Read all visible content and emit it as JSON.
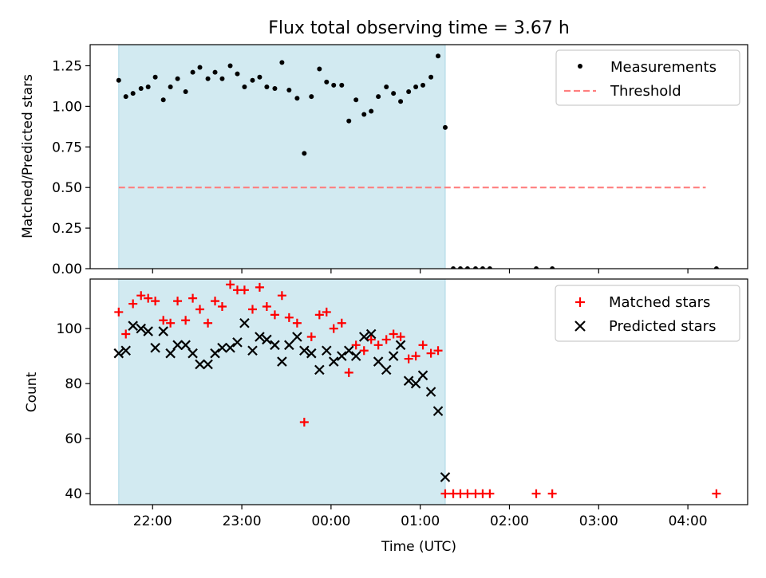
{
  "figure": {
    "title": "Flux total observing time = 3.67 h",
    "x_tick_labels": [
      "22:00",
      "23:00",
      "00:00",
      "01:00",
      "02:00",
      "03:00",
      "04:00"
    ],
    "xlabel": "Time (UTC)"
  },
  "colors": {
    "shade": "#add8e6",
    "measurements": "#000000",
    "threshold": "#ff7f7f",
    "matched": "#ff0000",
    "predicted": "#000000"
  },
  "chart_data": [
    {
      "type": "scatter",
      "panel": "top",
      "title": "Flux total observing time = 3.67 h",
      "xlabel": "",
      "ylabel": "Matched/Predicted stars",
      "x_unit": "hours since 21:00 UTC",
      "xlim": [
        0.3,
        7.67
      ],
      "ylim": [
        0.0,
        1.38
      ],
      "y_ticks": [
        0.0,
        0.25,
        0.5,
        0.75,
        1.0,
        1.25
      ],
      "y_tick_labels": [
        "0.00",
        "0.25",
        "0.50",
        "0.75",
        "1.00",
        "1.25"
      ],
      "grid": false,
      "legend": "top-right",
      "shaded_region": {
        "x": [
          0.62,
          4.28
        ]
      },
      "threshold": {
        "name": "Threshold",
        "y": 0.5,
        "x": [
          0.62,
          7.2
        ]
      },
      "series": [
        {
          "name": "Measurements",
          "x": [
            0.62,
            0.7,
            0.78,
            0.87,
            0.95,
            1.03,
            1.12,
            1.2,
            1.28,
            1.37,
            1.45,
            1.53,
            1.62,
            1.7,
            1.78,
            1.87,
            1.95,
            2.03,
            2.12,
            2.2,
            2.28,
            2.37,
            2.45,
            2.53,
            2.62,
            2.7,
            2.78,
            2.87,
            2.95,
            3.03,
            3.12,
            3.2,
            3.28,
            3.37,
            3.45,
            3.53,
            3.62,
            3.7,
            3.78,
            3.87,
            3.95,
            4.03,
            4.12,
            4.2,
            4.28,
            4.37,
            4.45,
            4.53,
            4.62,
            4.7,
            4.78,
            5.3,
            5.48,
            7.32
          ],
          "y": [
            1.16,
            1.06,
            1.08,
            1.11,
            1.12,
            1.18,
            1.04,
            1.12,
            1.17,
            1.09,
            1.21,
            1.24,
            1.17,
            1.21,
            1.17,
            1.25,
            1.2,
            1.12,
            1.16,
            1.18,
            1.12,
            1.11,
            1.27,
            1.1,
            1.05,
            0.71,
            1.06,
            1.23,
            1.15,
            1.13,
            1.13,
            0.91,
            1.04,
            0.95,
            0.97,
            1.06,
            1.12,
            1.08,
            1.03,
            1.09,
            1.12,
            1.13,
            1.18,
            1.31,
            0.87,
            0.0,
            0.0,
            0.0,
            0.0,
            0.0,
            0.0,
            0.0,
            0.0,
            0.0
          ]
        }
      ]
    },
    {
      "type": "scatter",
      "panel": "bottom",
      "xlabel": "Time (UTC)",
      "ylabel": "Count",
      "x_unit": "hours since 21:00 UTC",
      "xlim": [
        0.3,
        7.67
      ],
      "ylim": [
        36,
        118
      ],
      "y_ticks": [
        40,
        60,
        80,
        100
      ],
      "y_tick_labels": [
        "40",
        "60",
        "80",
        "100"
      ],
      "x_ticks": [
        1,
        2,
        3,
        4,
        5,
        6,
        7
      ],
      "x_tick_labels": [
        "22:00",
        "23:00",
        "00:00",
        "01:00",
        "02:00",
        "03:00",
        "04:00"
      ],
      "grid": false,
      "legend": "top-right",
      "shaded_region": {
        "x": [
          0.62,
          4.28
        ]
      },
      "series": [
        {
          "name": "Matched stars",
          "marker": "plus",
          "x": [
            0.62,
            0.7,
            0.78,
            0.87,
            0.95,
            1.03,
            1.12,
            1.2,
            1.28,
            1.37,
            1.45,
            1.53,
            1.62,
            1.7,
            1.78,
            1.87,
            1.95,
            2.03,
            2.12,
            2.2,
            2.28,
            2.37,
            2.45,
            2.53,
            2.62,
            2.7,
            2.78,
            2.87,
            2.95,
            3.03,
            3.12,
            3.2,
            3.28,
            3.37,
            3.45,
            3.53,
            3.62,
            3.7,
            3.78,
            3.87,
            3.95,
            4.03,
            4.12,
            4.2,
            4.28,
            4.37,
            4.45,
            4.53,
            4.62,
            4.7,
            4.78,
            5.3,
            5.48,
            7.32
          ],
          "y": [
            106,
            98,
            109,
            112,
            111,
            110,
            103,
            102,
            110,
            103,
            111,
            107,
            102,
            110,
            108,
            116,
            114,
            114,
            107,
            115,
            108,
            105,
            112,
            104,
            102,
            66,
            97,
            105,
            106,
            100,
            102,
            84,
            94,
            92,
            96,
            94,
            96,
            98,
            97,
            89,
            90,
            94,
            91,
            92,
            40,
            40,
            40,
            40,
            40,
            40,
            40,
            40,
            40,
            40
          ]
        },
        {
          "name": "Predicted stars",
          "marker": "x",
          "x": [
            0.62,
            0.7,
            0.78,
            0.87,
            0.95,
            1.03,
            1.12,
            1.2,
            1.28,
            1.37,
            1.45,
            1.53,
            1.62,
            1.7,
            1.78,
            1.87,
            1.95,
            2.03,
            2.12,
            2.2,
            2.28,
            2.37,
            2.45,
            2.53,
            2.62,
            2.7,
            2.78,
            2.87,
            2.95,
            3.03,
            3.12,
            3.2,
            3.28,
            3.37,
            3.45,
            3.53,
            3.62,
            3.7,
            3.78,
            3.87,
            3.95,
            4.03,
            4.12,
            4.2,
            4.28
          ],
          "y": [
            91,
            92,
            101,
            100,
            99,
            93,
            99,
            91,
            94,
            94,
            91,
            87,
            87,
            91,
            93,
            93,
            95,
            102,
            92,
            97,
            96,
            94,
            88,
            94,
            97,
            92,
            91,
            85,
            92,
            88,
            90,
            92,
            90,
            97,
            98,
            88,
            85,
            90,
            94,
            81,
            80,
            83,
            77,
            70,
            46
          ]
        }
      ]
    }
  ]
}
